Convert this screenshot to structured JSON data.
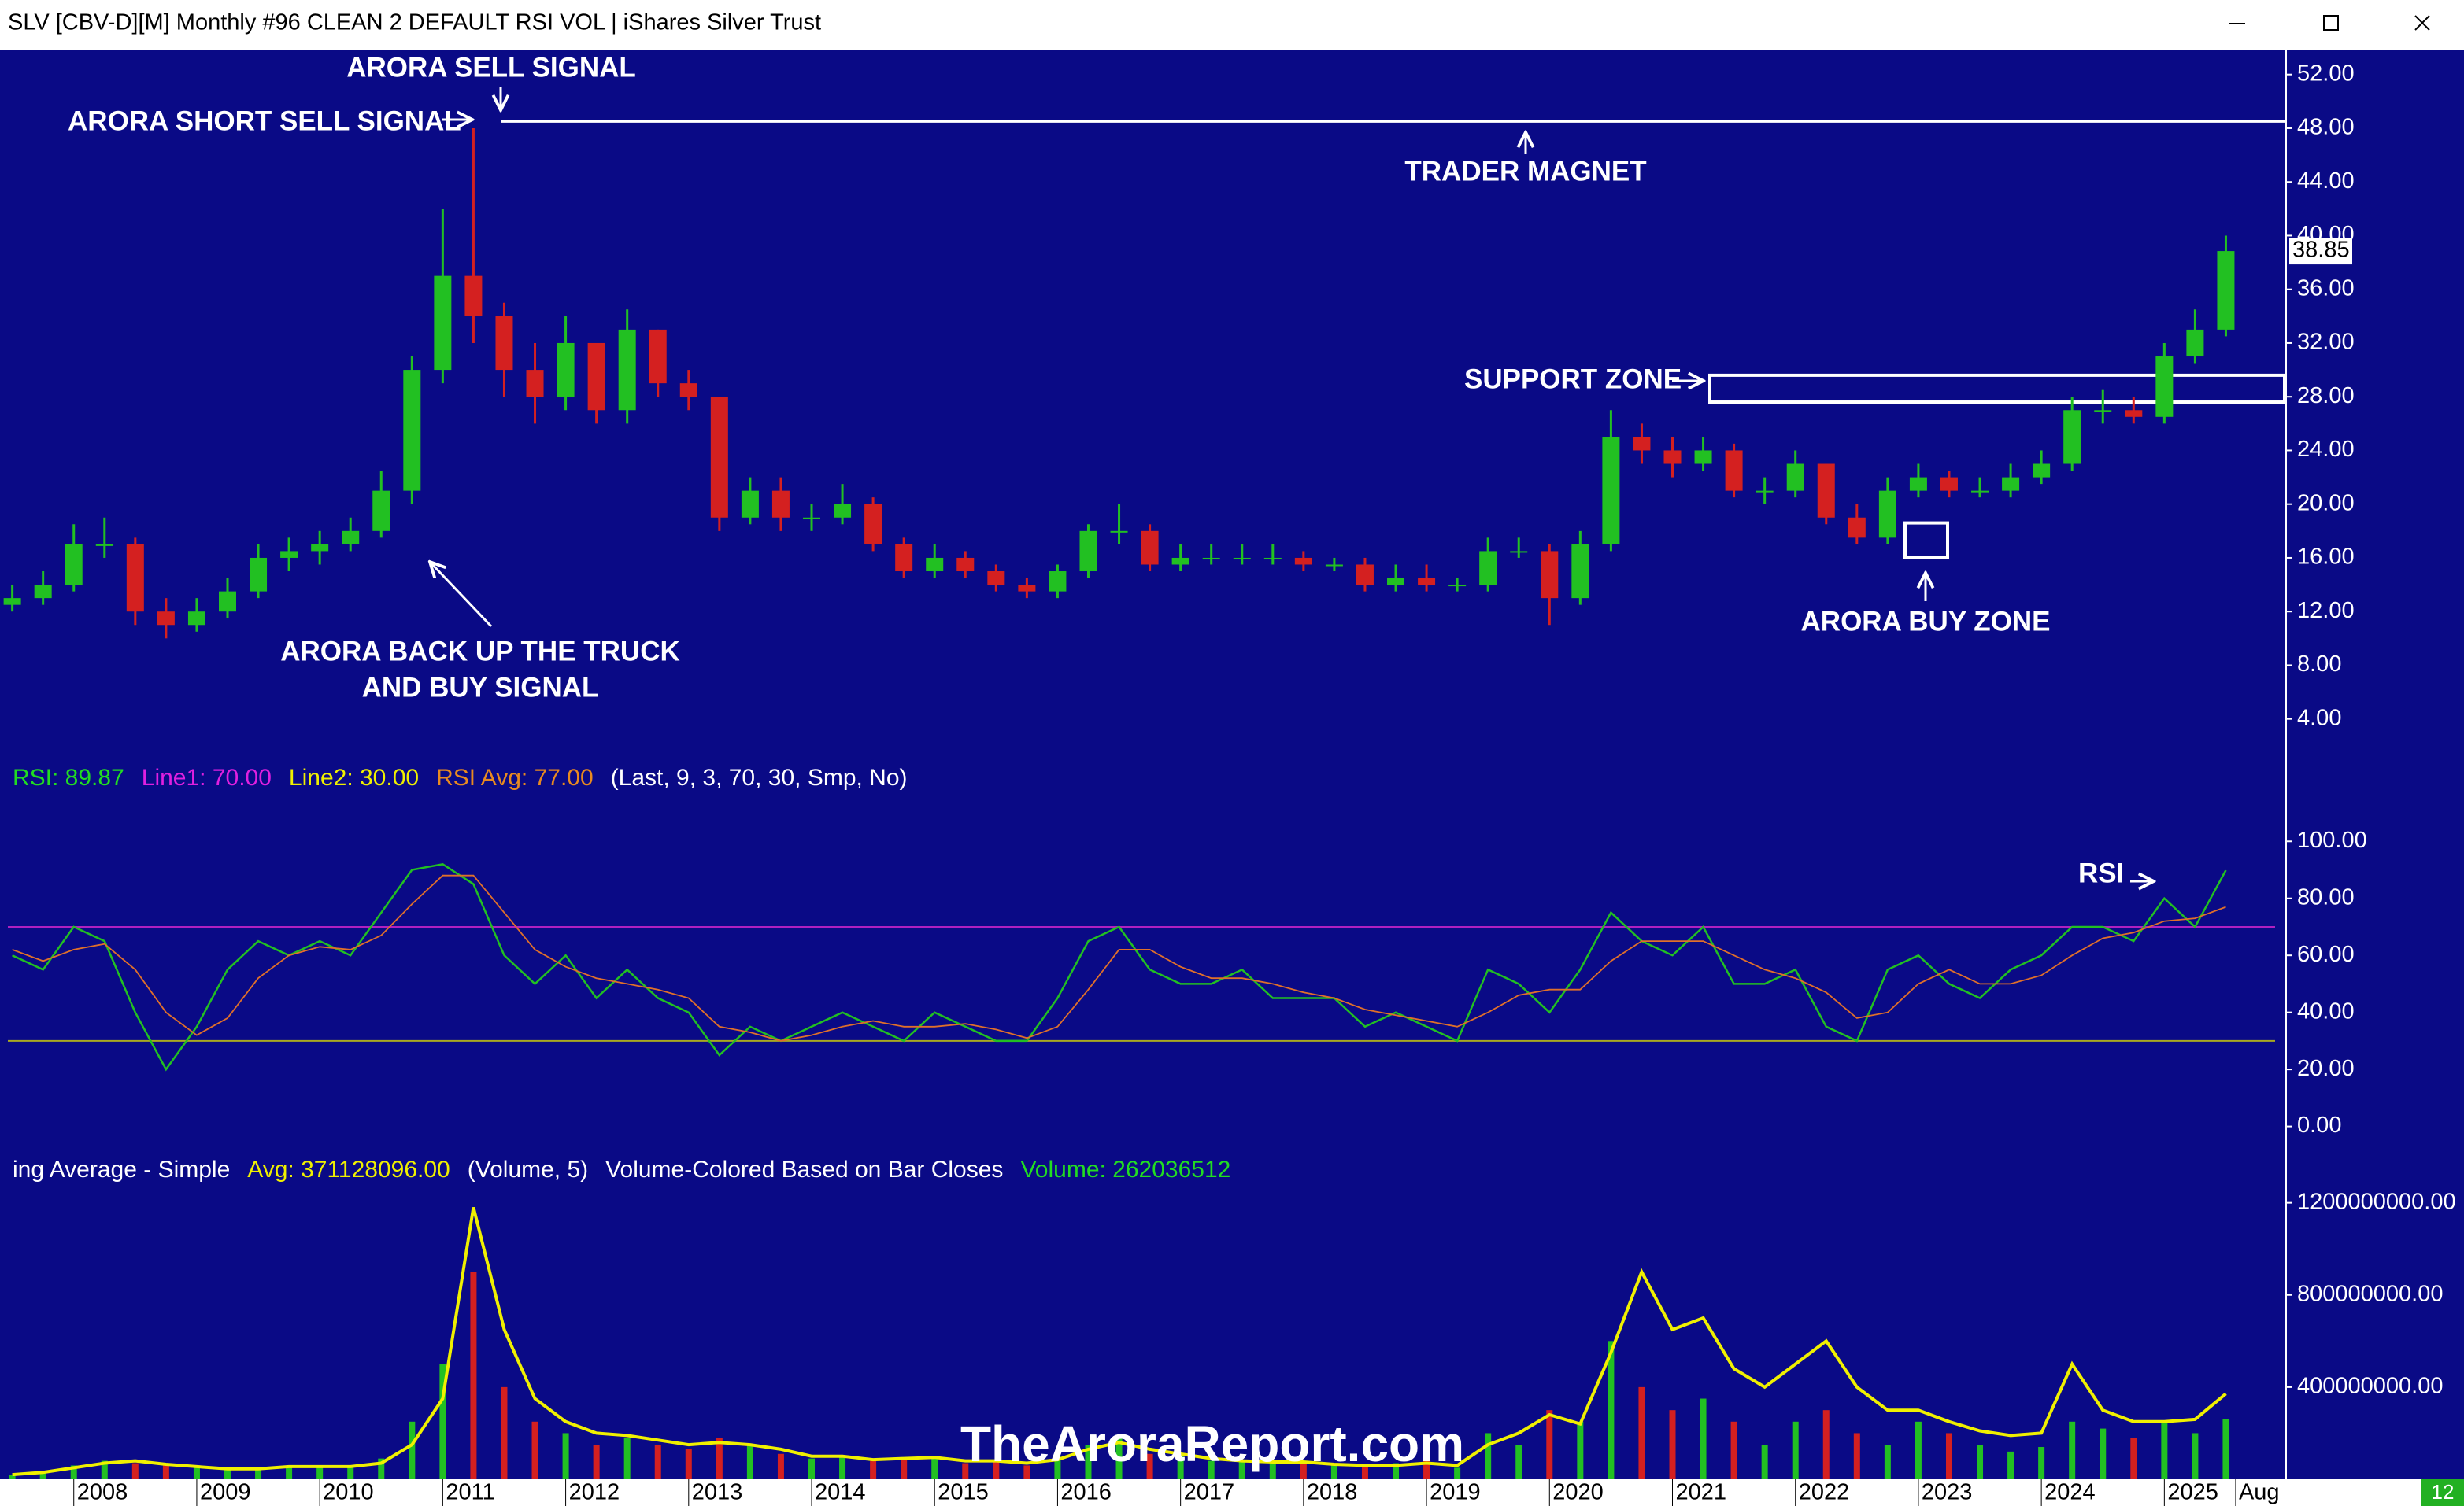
{
  "window": {
    "title": "SLV [CBV-D][M]  Monthly #96 CLEAN  2 DEFAULT RSI VOL | iShares Silver Trust",
    "badge": "12"
  },
  "watermark": "TheAroraReport.com",
  "chart_data": [
    {
      "type": "candlestick",
      "annotations": [
        "ARORA SELL SIGNAL",
        "ARORA SHORT SELL SIGNAL",
        "TRADER MAGNET",
        "ARORA BACK UP THE TRUCK",
        "AND BUY SIGNAL",
        "SUPPORT ZONE",
        "ARORA BUY ZONE"
      ],
      "x": [
        2007.5,
        2007.75,
        2008,
        2008.25,
        2008.5,
        2008.75,
        2009,
        2009.25,
        2009.5,
        2009.75,
        2010,
        2010.25,
        2010.5,
        2010.75,
        2011,
        2011.25,
        2011.5,
        2011.75,
        2012,
        2012.25,
        2012.5,
        2012.75,
        2013,
        2013.25,
        2013.5,
        2013.75,
        2014,
        2014.25,
        2014.5,
        2014.75,
        2015,
        2015.25,
        2015.5,
        2015.75,
        2016,
        2016.25,
        2016.5,
        2016.75,
        2017,
        2017.25,
        2017.5,
        2017.75,
        2018,
        2018.25,
        2018.5,
        2018.75,
        2019,
        2019.25,
        2019.5,
        2019.75,
        2020,
        2020.25,
        2020.5,
        2020.75,
        2021,
        2021.25,
        2021.5,
        2021.75,
        2022,
        2022.25,
        2022.5,
        2022.75,
        2023,
        2023.25,
        2023.5,
        2023.75,
        2024,
        2024.25,
        2024.5,
        2024.75,
        2025,
        2025.25,
        2025.5
      ],
      "open": [
        12.5,
        13,
        14,
        17,
        17,
        12,
        11,
        12,
        13.5,
        16,
        16.5,
        17,
        18,
        21,
        30,
        37,
        34,
        30,
        28,
        32,
        27,
        33,
        29,
        28,
        19,
        21,
        19,
        19,
        20,
        17,
        15,
        16,
        15,
        14,
        13.5,
        15,
        18,
        18,
        15.5,
        16,
        16,
        16,
        16,
        15.5,
        15.5,
        14,
        14.5,
        14,
        14,
        16.5,
        16.5,
        13,
        17,
        25,
        24,
        23,
        24,
        21,
        21,
        23,
        19,
        17.5,
        21,
        22,
        21,
        21,
        22,
        23,
        27,
        27,
        26.5,
        31,
        33
      ],
      "high": [
        14,
        15,
        18.5,
        19,
        17.5,
        13,
        13,
        14.5,
        17,
        17.5,
        18,
        19,
        22.5,
        31,
        42,
        48,
        35,
        32,
        34,
        32,
        34.5,
        33,
        30,
        28,
        22,
        22,
        20,
        21.5,
        20.5,
        17.5,
        17,
        16.5,
        15.5,
        14.5,
        15.5,
        18.5,
        20,
        18.5,
        17,
        17,
        17,
        17,
        16.5,
        16,
        16,
        15.5,
        15.5,
        14.5,
        17.5,
        17.5,
        17,
        18,
        27,
        26,
        25,
        25,
        24.5,
        22,
        24,
        23,
        20,
        22,
        23,
        22.5,
        22,
        23,
        24,
        28,
        28.5,
        28,
        32,
        34.5,
        40
      ],
      "low": [
        12,
        12.5,
        13.5,
        16,
        11,
        10,
        10.5,
        11.5,
        13,
        15,
        15.5,
        16.5,
        17.5,
        20,
        29,
        32,
        28,
        26,
        27,
        26,
        26,
        28,
        27,
        18,
        18.5,
        18,
        18,
        18.5,
        16.5,
        14.5,
        14.5,
        14.5,
        13.5,
        13,
        13,
        14.5,
        17,
        15,
        15,
        15.5,
        15.5,
        15.5,
        15,
        15,
        13.5,
        13.5,
        13.5,
        13.5,
        13.5,
        16,
        11,
        12.5,
        16.5,
        23,
        22,
        22.5,
        20.5,
        20,
        20.5,
        18.5,
        17,
        17,
        20.5,
        20.5,
        20.5,
        20.5,
        21.5,
        22.5,
        26,
        26,
        26,
        30.5,
        32.5
      ],
      "close": [
        13,
        14,
        17,
        17,
        12,
        11,
        12,
        13.5,
        16,
        16.5,
        17,
        18,
        21,
        30,
        37,
        34,
        30,
        28,
        32,
        27,
        33,
        29,
        28,
        19,
        21,
        19,
        19,
        20,
        17,
        15,
        16,
        15,
        14,
        13.5,
        15,
        18,
        18,
        15.5,
        16,
        16,
        16,
        16,
        15.5,
        15.5,
        14,
        14.5,
        14,
        14,
        16.5,
        16.5,
        13,
        17,
        25,
        24,
        23,
        24,
        21,
        21,
        23,
        19,
        17.5,
        21,
        22,
        21,
        21,
        22,
        23,
        27,
        27,
        26.5,
        31,
        33,
        38.85
      ],
      "up_color": "#22c022",
      "down_color": "#d42020",
      "hlines": [
        48.5
      ],
      "zones": [
        [
          27.6,
          29.6
        ],
        [
          16,
          18.6
        ]
      ],
      "xlim": [
        2007.4,
        2025.99
      ],
      "ylim": [
        0.7,
        53.8
      ],
      "yticks": [
        {
          "value": 4,
          "label": "4.00"
        },
        {
          "value": 8,
          "label": "8.00"
        },
        {
          "value": 12,
          "label": "12.00"
        },
        {
          "value": 16,
          "label": "16.00"
        },
        {
          "value": 20,
          "label": "20.00"
        },
        {
          "value": 24,
          "label": "24.00"
        },
        {
          "value": 28,
          "label": "28.00"
        },
        {
          "value": 32,
          "label": "32.00"
        },
        {
          "value": 36,
          "label": "36.00"
        },
        {
          "value": 40,
          "label": "40.00"
        },
        {
          "value": 44,
          "label": "44.00"
        },
        {
          "value": 48,
          "label": "48.00"
        },
        {
          "value": 52,
          "label": "52.00"
        }
      ]
    },
    {
      "type": "line",
      "legend": [
        {
          "text": "RSI: 89.87",
          "color": "#22dd22"
        },
        {
          "text": "Line1: 70.00",
          "color": "#e020e0"
        },
        {
          "text": "Line2: 30.00",
          "color": "#f0f000"
        },
        {
          "text": "RSI Avg: 77.00",
          "color": "#e88a20"
        },
        {
          "text": "(Last, 9, 3, 70, 30, Smp, No)",
          "color": "#ffffff"
        }
      ],
      "annotations": [
        "RSI"
      ],
      "x": [
        2007.5,
        2007.75,
        2008,
        2008.25,
        2008.5,
        2008.75,
        2009,
        2009.25,
        2009.5,
        2009.75,
        2010,
        2010.25,
        2010.5,
        2010.75,
        2011,
        2011.25,
        2011.5,
        2011.75,
        2012,
        2012.25,
        2012.5,
        2012.75,
        2013,
        2013.25,
        2013.5,
        2013.75,
        2014,
        2014.25,
        2014.5,
        2014.75,
        2015,
        2015.25,
        2015.5,
        2015.75,
        2016,
        2016.25,
        2016.5,
        2016.75,
        2017,
        2017.25,
        2017.5,
        2017.75,
        2018,
        2018.25,
        2018.5,
        2018.75,
        2019,
        2019.25,
        2019.5,
        2019.75,
        2020,
        2020.25,
        2020.5,
        2020.75,
        2021,
        2021.25,
        2021.5,
        2021.75,
        2022,
        2022.25,
        2022.5,
        2022.75,
        2023,
        2023.25,
        2023.5,
        2023.75,
        2024,
        2024.25,
        2024.5,
        2024.75,
        2025,
        2025.25,
        2025.5
      ],
      "series": [
        {
          "color": "#22c022",
          "values": [
            60,
            55,
            70,
            65,
            40,
            20,
            35,
            55,
            65,
            60,
            65,
            60,
            75,
            90,
            92,
            85,
            60,
            50,
            60,
            45,
            55,
            45,
            40,
            25,
            35,
            30,
            35,
            40,
            35,
            30,
            40,
            35,
            30,
            30,
            45,
            65,
            70,
            55,
            50,
            50,
            55,
            45,
            45,
            45,
            35,
            40,
            35,
            30,
            55,
            50,
            40,
            55,
            75,
            65,
            60,
            70,
            50,
            50,
            55,
            35,
            30,
            55,
            60,
            50,
            45,
            55,
            60,
            70,
            70,
            65,
            80,
            70,
            89.87
          ]
        },
        {
          "color": "#e0702a",
          "values": [
            62,
            58,
            62,
            64,
            55,
            40,
            32,
            38,
            52,
            60,
            63,
            62,
            67,
            78,
            88,
            88,
            75,
            62,
            56,
            52,
            50,
            48,
            45,
            35,
            33,
            30,
            32,
            35,
            37,
            35,
            35,
            36,
            34,
            31,
            35,
            48,
            62,
            62,
            56,
            52,
            52,
            50,
            47,
            45,
            41,
            39,
            37,
            35,
            40,
            46,
            48,
            48,
            58,
            65,
            65,
            65,
            60,
            55,
            52,
            47,
            38,
            40,
            50,
            55,
            50,
            50,
            53,
            60,
            66,
            68,
            72,
            73,
            77
          ]
        }
      ],
      "hlines": [
        {
          "value": 70,
          "color": "#b020c0"
        },
        {
          "value": 30,
          "color": "#a8a820"
        }
      ],
      "xlim": [
        2007.4,
        2025.99
      ],
      "ylim": [
        -9.5,
        127.4
      ],
      "yticks": [
        {
          "value": 0,
          "label": "0.00"
        },
        {
          "value": 20,
          "label": "20.00"
        },
        {
          "value": 40,
          "label": "40.00"
        },
        {
          "value": 60,
          "label": "60.00"
        },
        {
          "value": 80,
          "label": "80.00"
        },
        {
          "value": 100,
          "label": "100.00"
        }
      ]
    },
    {
      "type": "bar",
      "legend": [
        {
          "text": "ing Average - Simple",
          "color": "#ffffff"
        },
        {
          "text": "Avg: 371128096.00",
          "color": "#f0f000"
        },
        {
          "text": "(Volume, 5)",
          "color": "#ffffff"
        },
        {
          "text": "Volume-Colored Based on Bar Closes",
          "color": "#ffffff"
        },
        {
          "text": "Volume: 262036512",
          "color": "#22dd22"
        }
      ],
      "x": [
        2007.5,
        2007.75,
        2008,
        2008.25,
        2008.5,
        2008.75,
        2009,
        2009.25,
        2009.5,
        2009.75,
        2010,
        2010.25,
        2010.5,
        2010.75,
        2011,
        2011.25,
        2011.5,
        2011.75,
        2012,
        2012.25,
        2012.5,
        2012.75,
        2013,
        2013.25,
        2013.5,
        2013.75,
        2014,
        2014.25,
        2014.5,
        2014.75,
        2015,
        2015.25,
        2015.5,
        2015.75,
        2016,
        2016.25,
        2016.5,
        2016.75,
        2017,
        2017.25,
        2017.5,
        2017.75,
        2018,
        2018.25,
        2018.5,
        2018.75,
        2019,
        2019.25,
        2019.5,
        2019.75,
        2020,
        2020.25,
        2020.5,
        2020.75,
        2021,
        2021.25,
        2021.5,
        2021.75,
        2022,
        2022.25,
        2022.5,
        2022.75,
        2023,
        2023.25,
        2023.5,
        2023.75,
        2024,
        2024.25,
        2024.5,
        2024.75,
        2025,
        2025.25,
        2025.5
      ],
      "values": [
        20000000,
        25000000,
        60000000,
        80000000,
        70000000,
        60000000,
        50000000,
        40000000,
        50000000,
        60000000,
        50000000,
        55000000,
        90000000,
        250000000,
        500000000,
        900000000,
        400000000,
        250000000,
        200000000,
        150000000,
        180000000,
        150000000,
        130000000,
        180000000,
        150000000,
        110000000,
        90000000,
        100000000,
        80000000,
        90000000,
        100000000,
        70000000,
        80000000,
        60000000,
        100000000,
        150000000,
        180000000,
        110000000,
        110000000,
        80000000,
        80000000,
        70000000,
        80000000,
        60000000,
        60000000,
        70000000,
        80000000,
        50000000,
        200000000,
        150000000,
        300000000,
        250000000,
        600000000,
        400000000,
        300000000,
        350000000,
        250000000,
        150000000,
        250000000,
        300000000,
        200000000,
        150000000,
        250000000,
        200000000,
        150000000,
        120000000,
        140000000,
        250000000,
        220000000,
        180000000,
        250000000,
        200000000,
        262036512
      ],
      "avg": {
        "color": "#f0f000",
        "values": [
          20000000,
          30000000,
          50000000,
          70000000,
          80000000,
          65000000,
          55000000,
          45000000,
          45000000,
          55000000,
          55000000,
          55000000,
          70000000,
          150000000,
          350000000,
          1180000000,
          650000000,
          350000000,
          250000000,
          200000000,
          190000000,
          170000000,
          150000000,
          160000000,
          150000000,
          130000000,
          100000000,
          100000000,
          85000000,
          90000000,
          95000000,
          80000000,
          80000000,
          70000000,
          85000000,
          130000000,
          160000000,
          130000000,
          110000000,
          90000000,
          80000000,
          75000000,
          75000000,
          65000000,
          60000000,
          60000000,
          70000000,
          60000000,
          150000000,
          200000000,
          280000000,
          240000000,
          550000000,
          900000000,
          650000000,
          700000000,
          480000000,
          400000000,
          500000000,
          600000000,
          400000000,
          300000000,
          300000000,
          250000000,
          210000000,
          190000000,
          200000000,
          500000000,
          300000000,
          250000000,
          250000000,
          260000000,
          371128096
        ]
      },
      "xlim": [
        2007.4,
        2025.99
      ],
      "ylim": [
        0,
        1414000000
      ],
      "xticks": [
        2008,
        2009,
        2010,
        2011,
        2012,
        2013,
        2014,
        2015,
        2016,
        2017,
        2018,
        2019,
        2020,
        2021,
        2022,
        2023,
        2024,
        2025,
        {
          "value": 2025.58,
          "label": "Aug"
        }
      ],
      "yticks": [
        {
          "value": 400000000,
          "label": "400000000.00"
        },
        {
          "value": 800000000,
          "label": "800000000.00"
        },
        {
          "value": 1200000000,
          "label": "1200000000.00"
        }
      ]
    }
  ]
}
